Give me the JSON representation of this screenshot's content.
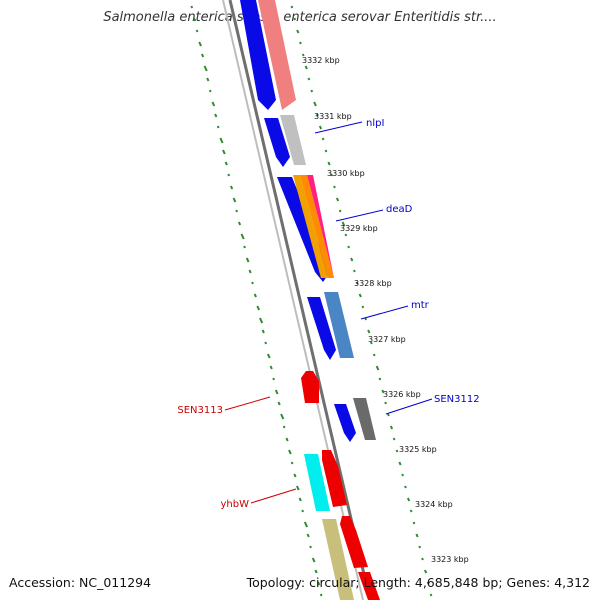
{
  "title": "Salmonella enterica subsp. enterica serovar Enteritidis str....",
  "footer": {
    "accession": "Accession: NC_011294",
    "summary": "Topology: circular; Length: 4,685,848 bp; Genes: 4,312"
  },
  "colors": {
    "backbone": "#8a8a8a",
    "gc_ticks": "#2e8b2e",
    "forward_label": "#0000cc",
    "reverse_label": "#cc0000"
  },
  "kbp_labels": [
    "3332 kbp",
    "3331 kbp",
    "3330 kbp",
    "3329 kbp",
    "3328 kbp",
    "3327 kbp",
    "3326 kbp",
    "3325 kbp",
    "3324 kbp",
    "3323 kbp"
  ],
  "gene_labels": [
    {
      "name": "nlpI",
      "color": "#0000cc"
    },
    {
      "name": "deaD",
      "color": "#0000cc"
    },
    {
      "name": "mtr",
      "color": "#0000cc"
    },
    {
      "name": "SEN3112",
      "color": "#0000cc"
    },
    {
      "name": "SEN3113",
      "color": "#cc0000"
    },
    {
      "name": "yhbW",
      "color": "#cc0000"
    }
  ],
  "features": [
    {
      "name": "nlpI",
      "strand": "+",
      "color": "#0a0ae6"
    },
    {
      "name": "deaD",
      "strand": "+",
      "color": "#0a0ae6"
    },
    {
      "name": "mtr",
      "strand": "+",
      "color": "#0a0ae6"
    },
    {
      "name": "SEN3112",
      "strand": "+",
      "color": "#0a0ae6"
    },
    {
      "name": "SEN3113",
      "strand": "-",
      "color": "#ee0000"
    },
    {
      "name": "yhbW",
      "strand": "-",
      "color": "#ee0000"
    }
  ]
}
